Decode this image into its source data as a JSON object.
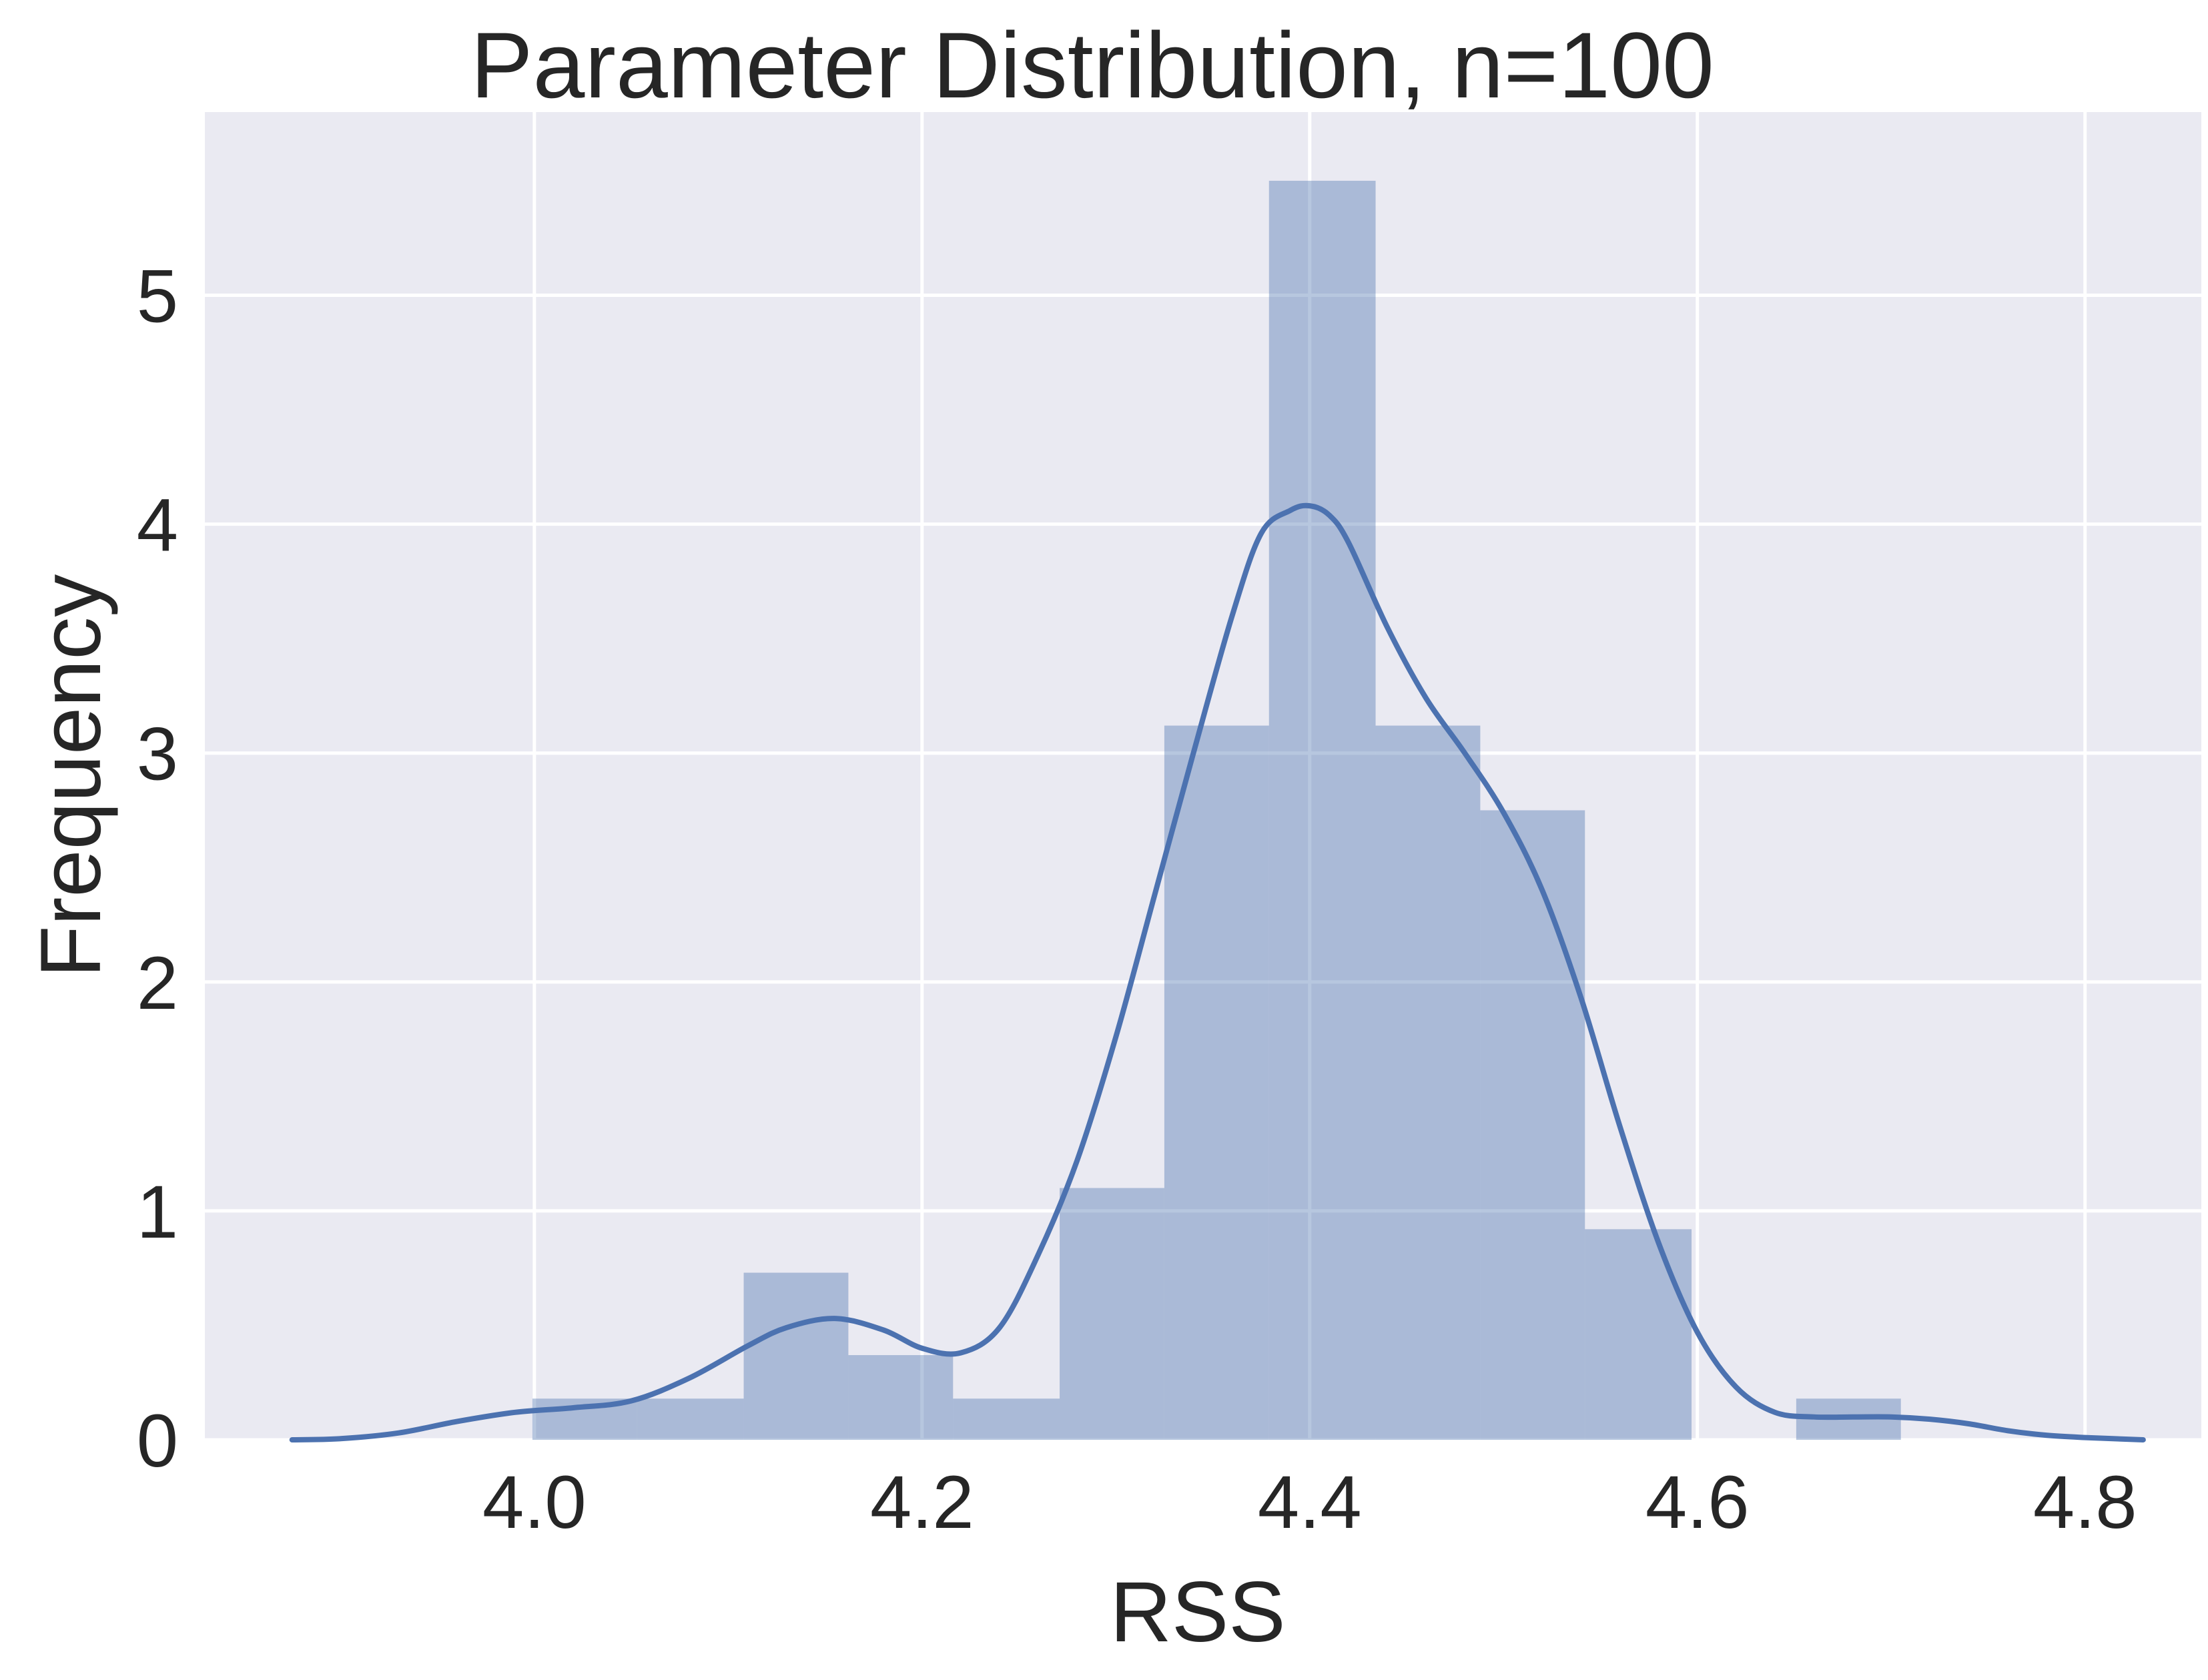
{
  "chart_data": {
    "type": "bar",
    "title": "Parameter Distribution, n=100",
    "xlabel": "RSS",
    "ylabel": "Frequency",
    "xlim": [
      3.83,
      4.86
    ],
    "ylim": [
      0,
      5.8
    ],
    "xticks": [
      "4.0",
      "4.2",
      "4.4",
      "4.6",
      "4.8"
    ],
    "xtick_values": [
      4.0,
      4.2,
      4.4,
      4.6,
      4.8
    ],
    "yticks": [
      "0",
      "1",
      "2",
      "3",
      "4",
      "5"
    ],
    "ytick_values": [
      0,
      1,
      2,
      3,
      4,
      5
    ],
    "grid": true,
    "histogram": {
      "bin_edges": [
        3.999,
        4.053,
        4.108,
        4.162,
        4.216,
        4.271,
        4.325,
        4.379,
        4.434,
        4.488,
        4.542,
        4.597,
        4.651,
        4.705
      ],
      "values": [
        0.18,
        0.18,
        0.73,
        0.37,
        0.18,
        1.1,
        3.12,
        5.5,
        3.12,
        2.75,
        0.92,
        0.0,
        0.18
      ]
    },
    "kde": {
      "x": [
        3.875,
        3.9,
        3.93,
        3.96,
        3.99,
        4.02,
        4.05,
        4.08,
        4.11,
        4.13,
        4.155,
        4.18,
        4.2,
        4.22,
        4.24,
        4.26,
        4.28,
        4.3,
        4.32,
        4.34,
        4.36,
        4.375,
        4.39,
        4.4,
        4.41,
        4.42,
        4.44,
        4.46,
        4.48,
        4.5,
        4.52,
        4.54,
        4.56,
        4.58,
        4.6,
        4.62,
        4.64,
        4.66,
        4.68,
        4.7,
        4.72,
        4.74,
        4.76,
        4.78,
        4.8,
        4.83
      ],
      "y": [
        0.0,
        0.005,
        0.03,
        0.08,
        0.12,
        0.14,
        0.17,
        0.27,
        0.41,
        0.49,
        0.53,
        0.48,
        0.4,
        0.38,
        0.49,
        0.81,
        1.22,
        1.76,
        2.38,
        3.0,
        3.6,
        3.96,
        4.06,
        4.08,
        4.04,
        3.92,
        3.55,
        3.24,
        3.0,
        2.74,
        2.4,
        1.93,
        1.37,
        0.86,
        0.47,
        0.23,
        0.12,
        0.1,
        0.1,
        0.1,
        0.09,
        0.07,
        0.04,
        0.02,
        0.01,
        0.0
      ]
    },
    "colors": {
      "background": "#eaeaf2",
      "bar": "#4c72b0",
      "bar_opacity": 0.4,
      "line": "#4c72b0",
      "text": "#262626"
    }
  }
}
